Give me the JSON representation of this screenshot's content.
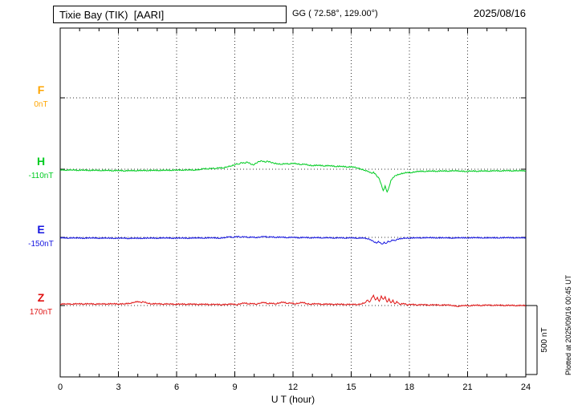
{
  "header": {
    "station_title": "Tixie Bay (TIK)  [AARI]",
    "coordinates": "GG ( 72.58°, 129.00°)",
    "date": "2025/08/16"
  },
  "right_side": {
    "scale_label": "500 nT",
    "plotted_at": "Plotted at 2025/09/16 00:45 UT"
  },
  "chart_data": {
    "type": "line",
    "title": "Tixie Bay (TIK) [AARI] magnetogram 2025/08/16",
    "xlabel": "U T (hour)",
    "ylabel": "",
    "x_range": [
      0,
      24
    ],
    "x_ticks": [
      0,
      3,
      6,
      9,
      12,
      15,
      18,
      21,
      24
    ],
    "x_tick_labels": [
      "0",
      "3",
      "6",
      "9",
      "12",
      "15",
      "18",
      "21",
      "24"
    ],
    "grid": "dotted",
    "scale_bar_nT": 500,
    "units": "nT",
    "values_are": "offset in nT from each component baseline (dotted line)",
    "series": [
      {
        "name": "F",
        "color": "#ffa500",
        "baseline_label": "0nT",
        "baseline_value": 0,
        "points": []
      },
      {
        "name": "H",
        "color": "#00cc22",
        "baseline_label": "-110nT",
        "baseline_value": -110,
        "points": [
          [
            0,
            -4
          ],
          [
            0.3,
            -7
          ],
          [
            0.6,
            -4
          ],
          [
            0.9,
            -8
          ],
          [
            1.2,
            -5
          ],
          [
            1.5,
            -9
          ],
          [
            1.8,
            -6
          ],
          [
            2.1,
            -10
          ],
          [
            2.4,
            -7
          ],
          [
            2.7,
            -11
          ],
          [
            3,
            -8
          ],
          [
            3.3,
            -12
          ],
          [
            3.6,
            -9
          ],
          [
            3.9,
            -11
          ],
          [
            4.2,
            -8
          ],
          [
            4.5,
            -10
          ],
          [
            4.8,
            -7
          ],
          [
            5.1,
            -9
          ],
          [
            5.4,
            -6
          ],
          [
            5.7,
            -8
          ],
          [
            6,
            -5
          ],
          [
            6.3,
            -7
          ],
          [
            6.6,
            -4
          ],
          [
            6.9,
            -6
          ],
          [
            7.2,
            -2
          ],
          [
            7.4,
            6
          ],
          [
            7.6,
            2
          ],
          [
            7.8,
            8
          ],
          [
            8,
            5
          ],
          [
            8.2,
            12
          ],
          [
            8.4,
            9
          ],
          [
            8.6,
            18
          ],
          [
            8.8,
            24
          ],
          [
            9,
            32
          ],
          [
            9.1,
            42
          ],
          [
            9.2,
            36
          ],
          [
            9.35,
            48
          ],
          [
            9.5,
            44
          ],
          [
            9.65,
            52
          ],
          [
            9.8,
            40
          ],
          [
            9.95,
            30
          ],
          [
            10.1,
            44
          ],
          [
            10.25,
            56
          ],
          [
            10.4,
            60
          ],
          [
            10.55,
            52
          ],
          [
            10.7,
            58
          ],
          [
            10.85,
            50
          ],
          [
            11,
            44
          ],
          [
            11.2,
            40
          ],
          [
            11.4,
            36
          ],
          [
            11.6,
            42
          ],
          [
            11.8,
            38
          ],
          [
            12,
            44
          ],
          [
            12.2,
            40
          ],
          [
            12.4,
            34
          ],
          [
            12.6,
            38
          ],
          [
            12.8,
            30
          ],
          [
            13,
            26
          ],
          [
            13.3,
            30
          ],
          [
            13.6,
            24
          ],
          [
            13.9,
            27
          ],
          [
            14.2,
            20
          ],
          [
            14.5,
            22
          ],
          [
            14.8,
            16
          ],
          [
            15.1,
            18
          ],
          [
            15.3,
            10
          ],
          [
            15.5,
            2
          ],
          [
            15.7,
            -8
          ],
          [
            15.9,
            -16
          ],
          [
            16.05,
            -30
          ],
          [
            16.15,
            -20
          ],
          [
            16.3,
            -45
          ],
          [
            16.45,
            -70
          ],
          [
            16.55,
            -110
          ],
          [
            16.65,
            -155
          ],
          [
            16.75,
            -120
          ],
          [
            16.85,
            -165
          ],
          [
            16.95,
            -130
          ],
          [
            17.05,
            -80
          ],
          [
            17.15,
            -60
          ],
          [
            17.3,
            -45
          ],
          [
            17.5,
            -35
          ],
          [
            17.7,
            -28
          ],
          [
            17.9,
            -22
          ],
          [
            18.1,
            -25
          ],
          [
            18.3,
            -18
          ],
          [
            18.5,
            -14
          ],
          [
            18.8,
            -16
          ],
          [
            19.1,
            -12
          ],
          [
            19.4,
            -15
          ],
          [
            19.7,
            -11
          ],
          [
            20,
            -14
          ],
          [
            20.3,
            -10
          ],
          [
            20.6,
            -13
          ],
          [
            20.9,
            -16
          ],
          [
            21.2,
            -12
          ],
          [
            21.5,
            -15
          ],
          [
            21.8,
            -11
          ],
          [
            22.1,
            -14
          ],
          [
            22.4,
            -10
          ],
          [
            22.7,
            -13
          ],
          [
            23,
            -9
          ],
          [
            23.3,
            -12
          ],
          [
            23.6,
            -10
          ],
          [
            24,
            -12
          ]
        ]
      },
      {
        "name": "E",
        "color": "#1414e0",
        "baseline_label": "-150nT",
        "baseline_value": -150,
        "points": [
          [
            0,
            -2
          ],
          [
            0.4,
            -5
          ],
          [
            0.8,
            -3
          ],
          [
            1.2,
            -6
          ],
          [
            1.6,
            -3
          ],
          [
            2,
            -6
          ],
          [
            2.4,
            -4
          ],
          [
            2.8,
            -7
          ],
          [
            3.2,
            -4
          ],
          [
            3.5,
            -8
          ],
          [
            3.8,
            -5
          ],
          [
            4.2,
            -7
          ],
          [
            4.6,
            -4
          ],
          [
            5,
            -6
          ],
          [
            5.4,
            -3
          ],
          [
            5.8,
            -6
          ],
          [
            6.2,
            -4
          ],
          [
            6.6,
            -6
          ],
          [
            7,
            -3
          ],
          [
            7.4,
            -5
          ],
          [
            7.8,
            -2
          ],
          [
            8.2,
            -6
          ],
          [
            8.5,
            -1
          ],
          [
            8.7,
            6
          ],
          [
            8.9,
            0
          ],
          [
            9.1,
            8
          ],
          [
            9.3,
            2
          ],
          [
            9.5,
            6
          ],
          [
            9.7,
            0
          ],
          [
            9.9,
            4
          ],
          [
            10.1,
            -2
          ],
          [
            10.3,
            3
          ],
          [
            10.5,
            8
          ],
          [
            10.7,
            2
          ],
          [
            10.9,
            5
          ],
          [
            11.1,
            0
          ],
          [
            11.4,
            3
          ],
          [
            11.7,
            -2
          ],
          [
            12,
            2
          ],
          [
            12.3,
            -3
          ],
          [
            12.6,
            1
          ],
          [
            12.9,
            -4
          ],
          [
            13.2,
            0
          ],
          [
            13.5,
            -4
          ],
          [
            13.8,
            -1
          ],
          [
            14.1,
            -5
          ],
          [
            14.4,
            -2
          ],
          [
            14.7,
            -5
          ],
          [
            15,
            -2
          ],
          [
            15.3,
            -6
          ],
          [
            15.6,
            -3
          ],
          [
            15.8,
            -8
          ],
          [
            16,
            -16
          ],
          [
            16.15,
            -30
          ],
          [
            16.3,
            -42
          ],
          [
            16.4,
            -28
          ],
          [
            16.5,
            -38
          ],
          [
            16.6,
            -48
          ],
          [
            16.7,
            -34
          ],
          [
            16.8,
            -44
          ],
          [
            16.9,
            -26
          ],
          [
            17,
            -32
          ],
          [
            17.1,
            -18
          ],
          [
            17.25,
            -24
          ],
          [
            17.4,
            -12
          ],
          [
            17.6,
            -8
          ],
          [
            17.8,
            -4
          ],
          [
            18,
            -6
          ],
          [
            18.3,
            -2
          ],
          [
            18.6,
            -4
          ],
          [
            19,
            -1
          ],
          [
            19.4,
            -4
          ],
          [
            19.8,
            -2
          ],
          [
            20.2,
            -5
          ],
          [
            20.6,
            -2
          ],
          [
            21,
            -4
          ],
          [
            21.4,
            -1
          ],
          [
            21.8,
            -4
          ],
          [
            22.2,
            -2
          ],
          [
            22.6,
            -4
          ],
          [
            23,
            -1
          ],
          [
            23.4,
            -3
          ],
          [
            23.7,
            -2
          ],
          [
            24,
            -3
          ]
        ]
      },
      {
        "name": "Z",
        "color": "#e01212",
        "baseline_label": "170nT",
        "baseline_value": 170,
        "points": [
          [
            0,
            10
          ],
          [
            0.3,
            13
          ],
          [
            0.6,
            10
          ],
          [
            0.9,
            14
          ],
          [
            1.2,
            11
          ],
          [
            1.5,
            14
          ],
          [
            1.8,
            10
          ],
          [
            2.1,
            13
          ],
          [
            2.4,
            11
          ],
          [
            2.7,
            14
          ],
          [
            3,
            11
          ],
          [
            3.3,
            13
          ],
          [
            3.6,
            16
          ],
          [
            3.8,
            24
          ],
          [
            4,
            30
          ],
          [
            4.15,
            22
          ],
          [
            4.3,
            27
          ],
          [
            4.5,
            18
          ],
          [
            4.7,
            12
          ],
          [
            5,
            14
          ],
          [
            5.3,
            10
          ],
          [
            5.6,
            13
          ],
          [
            5.9,
            9
          ],
          [
            6.2,
            12
          ],
          [
            6.5,
            9
          ],
          [
            6.8,
            12
          ],
          [
            7.1,
            8
          ],
          [
            7.4,
            11
          ],
          [
            7.7,
            7
          ],
          [
            8,
            10
          ],
          [
            8.3,
            6
          ],
          [
            8.6,
            9
          ],
          [
            8.9,
            12
          ],
          [
            9.1,
            6
          ],
          [
            9.3,
            14
          ],
          [
            9.5,
            20
          ],
          [
            9.7,
            12
          ],
          [
            9.9,
            16
          ],
          [
            10.1,
            10
          ],
          [
            10.3,
            18
          ],
          [
            10.5,
            24
          ],
          [
            10.7,
            14
          ],
          [
            10.9,
            18
          ],
          [
            11.1,
            12
          ],
          [
            11.3,
            20
          ],
          [
            11.5,
            26
          ],
          [
            11.7,
            16
          ],
          [
            11.9,
            20
          ],
          [
            12.1,
            12
          ],
          [
            12.3,
            18
          ],
          [
            12.5,
            24
          ],
          [
            12.7,
            14
          ],
          [
            12.9,
            10
          ],
          [
            13.2,
            14
          ],
          [
            13.5,
            9
          ],
          [
            13.8,
            12
          ],
          [
            14.1,
            8
          ],
          [
            14.4,
            11
          ],
          [
            14.7,
            7
          ],
          [
            15,
            10
          ],
          [
            15.3,
            7
          ],
          [
            15.5,
            12
          ],
          [
            15.7,
            20
          ],
          [
            15.85,
            40
          ],
          [
            15.95,
            25
          ],
          [
            16.05,
            55
          ],
          [
            16.15,
            75
          ],
          [
            16.25,
            40
          ],
          [
            16.35,
            60
          ],
          [
            16.45,
            30
          ],
          [
            16.55,
            70
          ],
          [
            16.65,
            45
          ],
          [
            16.75,
            65
          ],
          [
            16.85,
            25
          ],
          [
            16.95,
            50
          ],
          [
            17.05,
            20
          ],
          [
            17.15,
            40
          ],
          [
            17.25,
            12
          ],
          [
            17.35,
            30
          ],
          [
            17.5,
            8
          ],
          [
            17.7,
            16
          ],
          [
            17.9,
            5
          ],
          [
            18.1,
            10
          ],
          [
            18.4,
            4
          ],
          [
            18.7,
            8
          ],
          [
            19,
            3
          ],
          [
            19.3,
            7
          ],
          [
            19.6,
            2
          ],
          [
            19.9,
            6
          ],
          [
            20.2,
            1
          ],
          [
            20.5,
            -6
          ],
          [
            20.8,
            2
          ],
          [
            21.1,
            -2
          ],
          [
            21.4,
            4
          ],
          [
            21.7,
            0
          ],
          [
            22,
            5
          ],
          [
            22.3,
            1
          ],
          [
            22.6,
            4
          ],
          [
            22.9,
            0
          ],
          [
            23.2,
            3
          ],
          [
            23.5,
            -1
          ],
          [
            23.8,
            2
          ],
          [
            24,
            0
          ]
        ]
      }
    ]
  }
}
